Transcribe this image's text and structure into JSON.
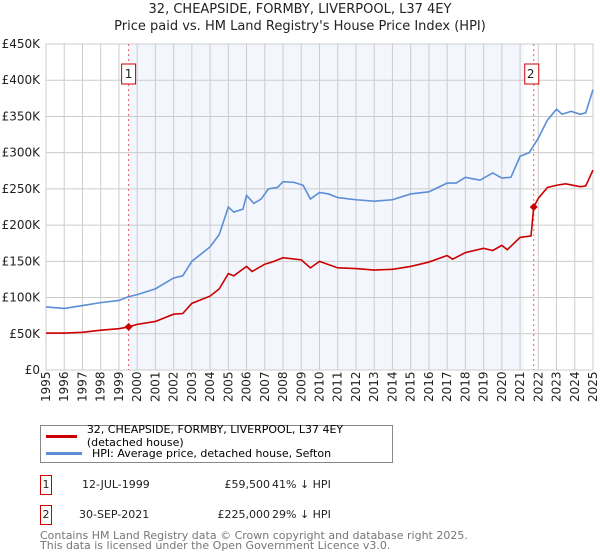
{
  "chart_data": {
    "type": "line",
    "title": "32, CHEAPSIDE, FORMBY, LIVERPOOL, L37 4EY",
    "subtitle": "Price paid vs. HM Land Registry's House Price Index (HPI)",
    "xlim": [
      1995,
      2025
    ],
    "ylim": [
      0,
      450000
    ],
    "x_ticks": [
      "1995",
      "1996",
      "1997",
      "1998",
      "1999",
      "2000",
      "2001",
      "2002",
      "2003",
      "2004",
      "2005",
      "2006",
      "2007",
      "2008",
      "2009",
      "2010",
      "2011",
      "2012",
      "2013",
      "2014",
      "2015",
      "2016",
      "2017",
      "2018",
      "2019",
      "2020",
      "2021",
      "2022",
      "2023",
      "2024",
      "2025"
    ],
    "y_ticks": [
      {
        "v": 0,
        "l": "£0"
      },
      {
        "v": 50000,
        "l": "£50K"
      },
      {
        "v": 100000,
        "l": "£100K"
      },
      {
        "v": 150000,
        "l": "£150K"
      },
      {
        "v": 200000,
        "l": "£200K"
      },
      {
        "v": 250000,
        "l": "£250K"
      },
      {
        "v": 300000,
        "l": "£300K"
      },
      {
        "v": 350000,
        "l": "£350K"
      },
      {
        "v": 400000,
        "l": "£400K"
      },
      {
        "v": 450000,
        "l": "£450K"
      }
    ],
    "grid": true,
    "series": [
      {
        "name": "32, CHEAPSIDE, FORMBY, LIVERPOOL, L37 4EY (detached house)",
        "color": "#cc0000",
        "x": [
          1995,
          1996,
          1997,
          1998,
          1999,
          1999.53,
          2000,
          2001,
          2002,
          2002.5,
          2003,
          2004,
          2004.5,
          2005,
          2005.3,
          2006,
          2006.3,
          2007,
          2007.5,
          2008,
          2009,
          2009.5,
          2010,
          2011,
          2012,
          2013,
          2014,
          2015,
          2016,
          2017,
          2017.3,
          2018,
          2019,
          2019.5,
          2020,
          2020.3,
          2021,
          2021.6,
          2021.75,
          2022,
          2022.5,
          2023,
          2023.5,
          2024.3,
          2024.6,
          2025
        ],
        "y": [
          51000,
          51000,
          52000,
          55000,
          57000,
          59500,
          63000,
          67000,
          77000,
          78000,
          92000,
          102000,
          112000,
          133000,
          130000,
          143000,
          136000,
          146000,
          150000,
          155000,
          152000,
          141000,
          150000,
          141000,
          140000,
          138000,
          139000,
          143000,
          149000,
          158000,
          153000,
          162000,
          168000,
          165000,
          172000,
          166000,
          183000,
          185000,
          225000,
          237000,
          252000,
          255000,
          257000,
          253000,
          254000,
          276000
        ]
      },
      {
        "name": "HPI: Average price, detached house, Sefton",
        "color": "#5b8ed6",
        "x": [
          1995,
          1996,
          1997,
          1998,
          1999,
          1999.5,
          2000,
          2001,
          2002,
          2002.5,
          2003,
          2004,
          2004.5,
          2005,
          2005.3,
          2005.8,
          2006,
          2006.4,
          2006.8,
          2007.2,
          2007.7,
          2008,
          2008.6,
          2009.1,
          2009.5,
          2010,
          2010.5,
          2011,
          2012,
          2013,
          2014,
          2015,
          2016,
          2017,
          2017.5,
          2018,
          2018.8,
          2019.5,
          2020,
          2020.5,
          2021,
          2021.5,
          2022,
          2022.5,
          2023,
          2023.3,
          2023.8,
          2024.3,
          2024.6,
          2025
        ],
        "y": [
          87000,
          85000,
          89000,
          93000,
          96000,
          101000,
          104000,
          112000,
          127000,
          130000,
          150000,
          170000,
          187000,
          225000,
          218000,
          222000,
          241000,
          230000,
          236000,
          250000,
          252000,
          260000,
          259000,
          255000,
          236000,
          245000,
          243000,
          238000,
          235000,
          233000,
          235000,
          243000,
          246000,
          258000,
          258000,
          266000,
          262000,
          272000,
          265000,
          266000,
          295000,
          300000,
          320000,
          345000,
          360000,
          353000,
          357000,
          353000,
          355000,
          387000
        ]
      }
    ],
    "sales": [
      {
        "label": "1",
        "x": 1999.53,
        "y": 59500,
        "date": "12-JUL-1999",
        "price": "£59,500",
        "delta": "41% ↓ HPI"
      },
      {
        "label": "2",
        "x": 2021.75,
        "y": 225000,
        "date": "30-SEP-2021",
        "price": "£225,000",
        "delta": "29% ↓ HPI"
      }
    ],
    "legend_position": "below"
  },
  "footer": {
    "line1": "Contains HM Land Registry data © Crown copyright and database right 2025.",
    "line2": "This data is licensed under the Open Government Licence v3.0."
  }
}
